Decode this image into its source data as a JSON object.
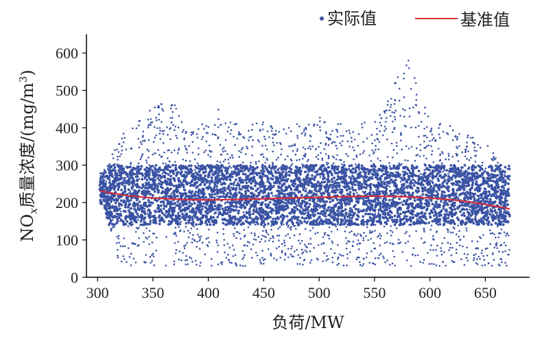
{
  "chart_data": {
    "type": "scatter",
    "xlabel": "负荷/MW",
    "ylabel": {
      "prefix": "NO",
      "sub": "x",
      "middle": "质量浓度/(mg/m",
      "sup": "3",
      "suffix": ")"
    },
    "xlim": [
      290,
      690
    ],
    "ylim": [
      0,
      650
    ],
    "xticks": [
      300,
      350,
      400,
      450,
      500,
      550,
      600,
      650
    ],
    "yticks": [
      0,
      100,
      200,
      300,
      400,
      500,
      600
    ],
    "legend": {
      "position": "top-right"
    },
    "series": [
      {
        "name": "实际值",
        "kind": "scatter",
        "color": "#3a53a4",
        "x_range": [
          302,
          672
        ],
        "dense_band": [
          140,
          300
        ],
        "cloud": [
          {
            "x": 305,
            "lo": 195,
            "hi": 280
          },
          {
            "x": 320,
            "lo": 30,
            "hi": 380
          },
          {
            "x": 340,
            "lo": 30,
            "hi": 430
          },
          {
            "x": 360,
            "lo": 30,
            "hi": 480
          },
          {
            "x": 370,
            "lo": 30,
            "hi": 480
          },
          {
            "x": 380,
            "lo": 30,
            "hi": 390
          },
          {
            "x": 400,
            "lo": 30,
            "hi": 420
          },
          {
            "x": 410,
            "lo": 30,
            "hi": 460
          },
          {
            "x": 430,
            "lo": 30,
            "hi": 400
          },
          {
            "x": 450,
            "lo": 30,
            "hi": 420
          },
          {
            "x": 470,
            "lo": 30,
            "hi": 400
          },
          {
            "x": 500,
            "lo": 30,
            "hi": 430
          },
          {
            "x": 530,
            "lo": 30,
            "hi": 410
          },
          {
            "x": 550,
            "lo": 30,
            "hi": 430
          },
          {
            "x": 580,
            "lo": 30,
            "hi": 590
          },
          {
            "x": 600,
            "lo": 30,
            "hi": 420
          },
          {
            "x": 630,
            "lo": 30,
            "hi": 400
          },
          {
            "x": 650,
            "lo": 30,
            "hi": 360
          },
          {
            "x": 670,
            "lo": 30,
            "hi": 300
          }
        ]
      },
      {
        "name": "基准值",
        "kind": "line",
        "color": "#d62d3a",
        "x": [
          302,
          325,
          350,
          375,
          400,
          425,
          450,
          475,
          500,
          525,
          550,
          575,
          600,
          625,
          650,
          672
        ],
        "y": [
          231,
          219,
          212,
          208,
          207,
          208,
          210,
          212,
          214,
          216,
          217,
          216,
          212,
          206,
          195,
          183
        ]
      }
    ]
  }
}
